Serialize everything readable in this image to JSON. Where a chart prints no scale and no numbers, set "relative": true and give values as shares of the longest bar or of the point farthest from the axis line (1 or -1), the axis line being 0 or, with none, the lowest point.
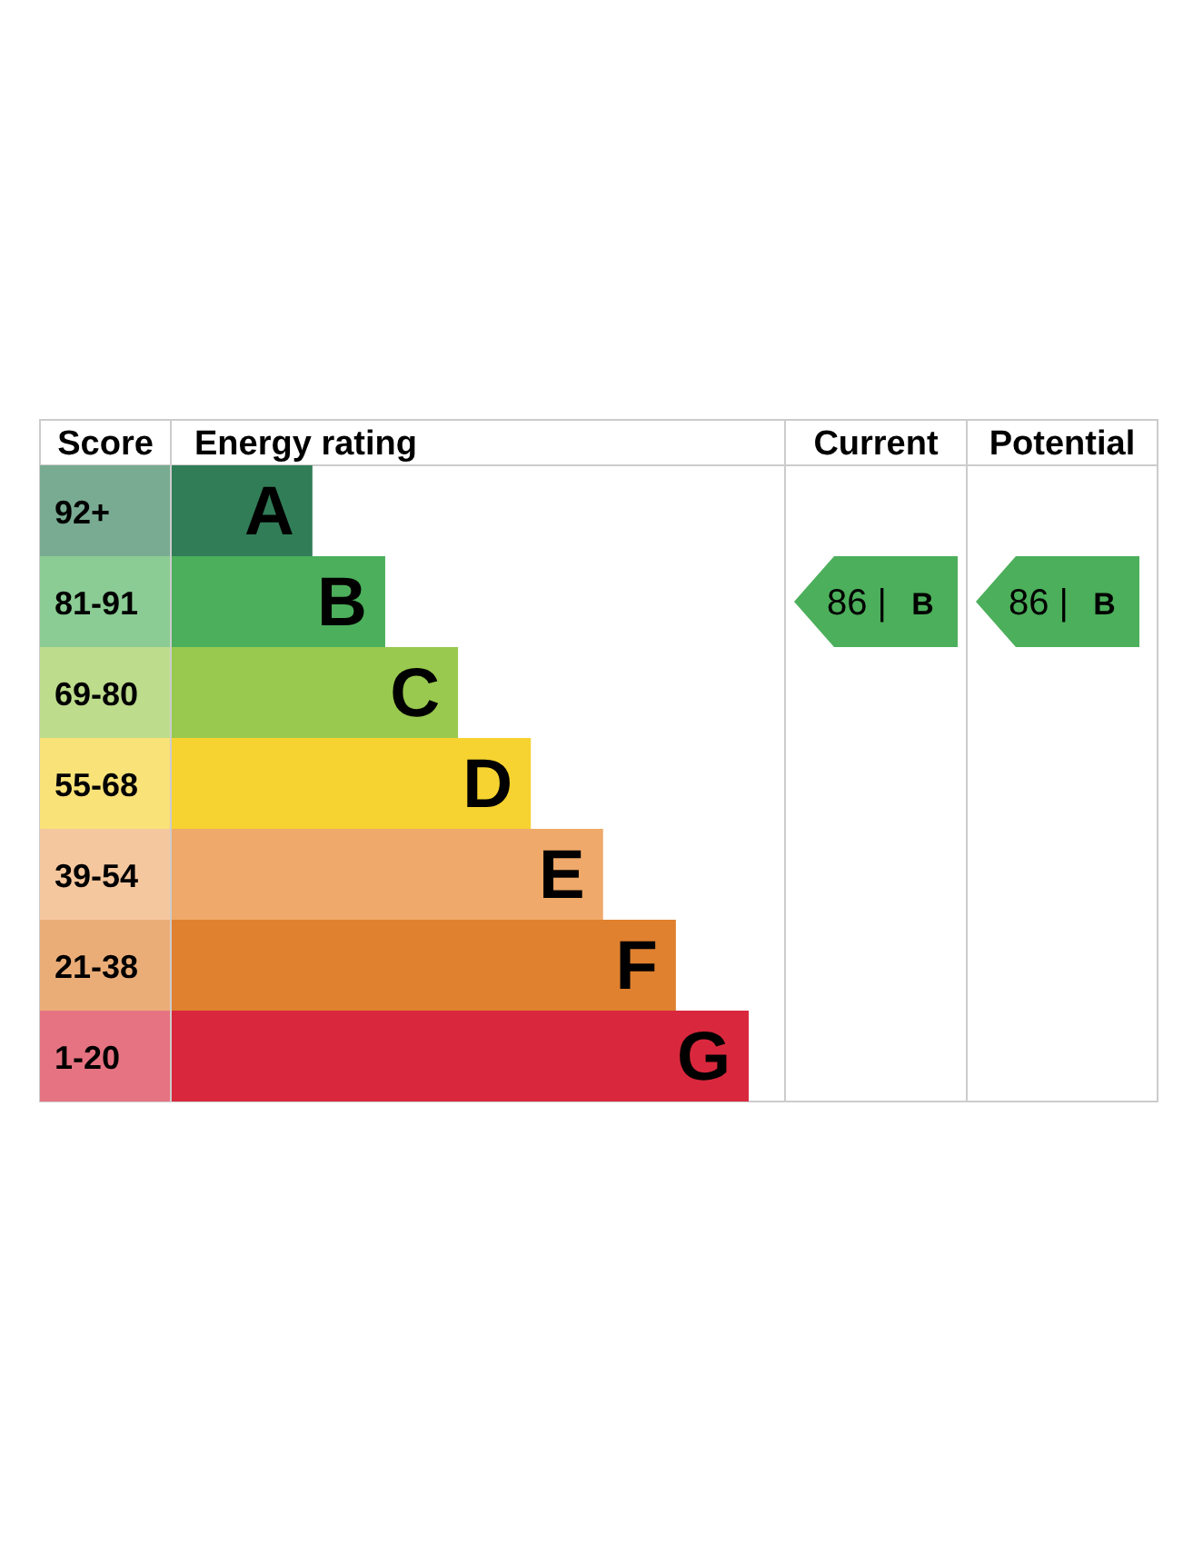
{
  "chart_data": {
    "type": "bar",
    "orientation": "horizontal",
    "relative": true,
    "xlabel": "Energy rating",
    "categories": [
      "92+",
      "81-91",
      "69-80",
      "55-68",
      "39-54",
      "21-38",
      "1-20"
    ],
    "colors": [
      "#317d57",
      "#4caf5b",
      "#99c94e",
      "#f6d330",
      "#efa96a",
      "#e0812f",
      "#d9283d"
    ],
    "values": [
      0.245,
      0.371,
      0.497,
      0.623,
      0.748,
      0.874,
      1
    ],
    "annotations": [
      "Score",
      "Current",
      "Potential",
      "A",
      "B",
      "C",
      "D",
      "E",
      "F",
      "G",
      "86 | B",
      "86 | B"
    ]
  }
}
